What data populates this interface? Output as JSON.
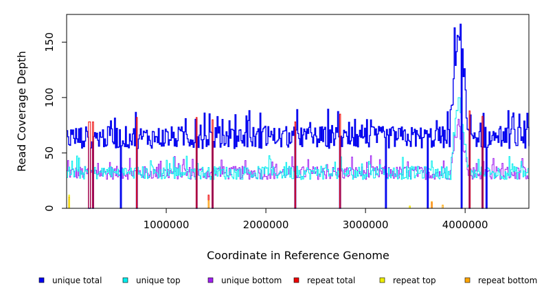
{
  "chart_data": {
    "type": "line",
    "title": "",
    "xlabel": "Coordinate in Reference Genome",
    "ylabel": "Read Coverage Depth",
    "xlim": [
      0,
      4640000
    ],
    "ylim": [
      0,
      175
    ],
    "x_ticks": [
      1000000,
      2000000,
      3000000,
      4000000
    ],
    "x_tick_labels": [
      "1000000",
      "2000000",
      "3000000",
      "4000000"
    ],
    "y_ticks": [
      0,
      50,
      100,
      150
    ],
    "y_tick_labels": [
      "0",
      "50",
      "100",
      "150"
    ],
    "grid": false,
    "legend_position": "bottom",
    "sample_step": 10000,
    "series": [
      {
        "name": "unique total",
        "color": "#0000ee",
        "baseline": 64,
        "noise": 10
      },
      {
        "name": "unique top",
        "color": "#00eeee",
        "baseline": 32,
        "noise": 6
      },
      {
        "name": "unique bottom",
        "color": "#a020f0",
        "baseline": 32,
        "noise": 6
      },
      {
        "name": "repeat total",
        "color": "#ee0000",
        "baseline": 0,
        "noise": 0
      },
      {
        "name": "repeat top",
        "color": "#eeee00",
        "baseline": 0,
        "noise": 0
      },
      {
        "name": "repeat bottom",
        "color": "#ffa500",
        "baseline": 0,
        "noise": 0
      }
    ],
    "dropouts": [
      225000,
      260000,
      540000,
      700000,
      1300000,
      1460000,
      2290000,
      2740000,
      3200000,
      3620000,
      3960000,
      4040000,
      4170000,
      4210000
    ],
    "repeat_regions": [
      {
        "x": 225000,
        "total": 78,
        "top": 0,
        "bottom": 0
      },
      {
        "x": 260000,
        "total": 78,
        "top": 0,
        "bottom": 0
      },
      {
        "x": 700000,
        "total": 82,
        "top": 0,
        "bottom": 0
      },
      {
        "x": 1300000,
        "total": 82,
        "top": 0,
        "bottom": 0
      },
      {
        "x": 1420000,
        "total": 12,
        "top": 0,
        "bottom": 7
      },
      {
        "x": 1460000,
        "total": 80,
        "top": 0,
        "bottom": 0
      },
      {
        "x": 2290000,
        "total": 78,
        "top": 0,
        "bottom": 0
      },
      {
        "x": 2740000,
        "total": 85,
        "top": 0,
        "bottom": 0
      },
      {
        "x": 3440000,
        "total": 0,
        "top": 2,
        "bottom": 2
      },
      {
        "x": 3660000,
        "total": 5,
        "top": 0,
        "bottom": 6
      },
      {
        "x": 3770000,
        "total": 0,
        "top": 0,
        "bottom": 3
      },
      {
        "x": 4040000,
        "total": 88,
        "top": 0,
        "bottom": 0
      },
      {
        "x": 4170000,
        "total": 83,
        "top": 0,
        "bottom": 0
      },
      {
        "x": 20000,
        "total": 10,
        "top": 12,
        "bottom": 8
      }
    ],
    "peak_region": {
      "start": 3850000,
      "end": 4020000,
      "max": 170,
      "top_max": 93,
      "bottom_max": 78
    }
  }
}
